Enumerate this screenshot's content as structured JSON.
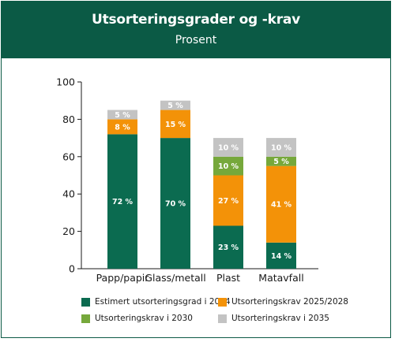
{
  "header": {
    "title": "Utsorteringsgrader og -krav",
    "subtitle": "Prosent"
  },
  "colors": {
    "header_bg": "#0b5a45",
    "series": [
      "#0b6b50",
      "#f39208",
      "#76a83b",
      "#c3c3c3"
    ]
  },
  "chart_data": {
    "type": "bar",
    "stacked": true,
    "title": "Utsorteringsgrader og -krav",
    "subtitle": "Prosent",
    "categories": [
      "Papp/papir",
      "Glass/metall",
      "Plast",
      "Matavfall"
    ],
    "series": [
      {
        "name": "Estimert utsorteringsgrad i 2024",
        "color": "#0b6b50",
        "values": [
          72,
          70,
          23,
          14
        ],
        "labels": [
          "72 %",
          "70 %",
          "23 %",
          "14 %"
        ]
      },
      {
        "name": "Utsorteringskrav 2025/2028",
        "color": "#f39208",
        "values": [
          8,
          15,
          27,
          41
        ],
        "labels": [
          "8 %",
          "15 %",
          "27 %",
          "41 %"
        ]
      },
      {
        "name": "Utsorteringskrav i 2030",
        "color": "#76a83b",
        "values": [
          0,
          0,
          10,
          5
        ],
        "labels": [
          "",
          "",
          "10 %",
          "5 %"
        ]
      },
      {
        "name": "Utsorteringskrav i 2035",
        "color": "#c3c3c3",
        "values": [
          5,
          5,
          10,
          10
        ],
        "labels": [
          "5 %",
          "5 %",
          "10 %",
          "10 %"
        ]
      }
    ],
    "ylim": [
      0,
      100
    ],
    "yticks": [
      0,
      20,
      40,
      60,
      80,
      100
    ],
    "ytick_labels": [
      "0",
      "20",
      "40",
      "60",
      "80",
      "100"
    ],
    "xlabel": "",
    "ylabel": "",
    "grid": false,
    "legend_position": "bottom"
  }
}
